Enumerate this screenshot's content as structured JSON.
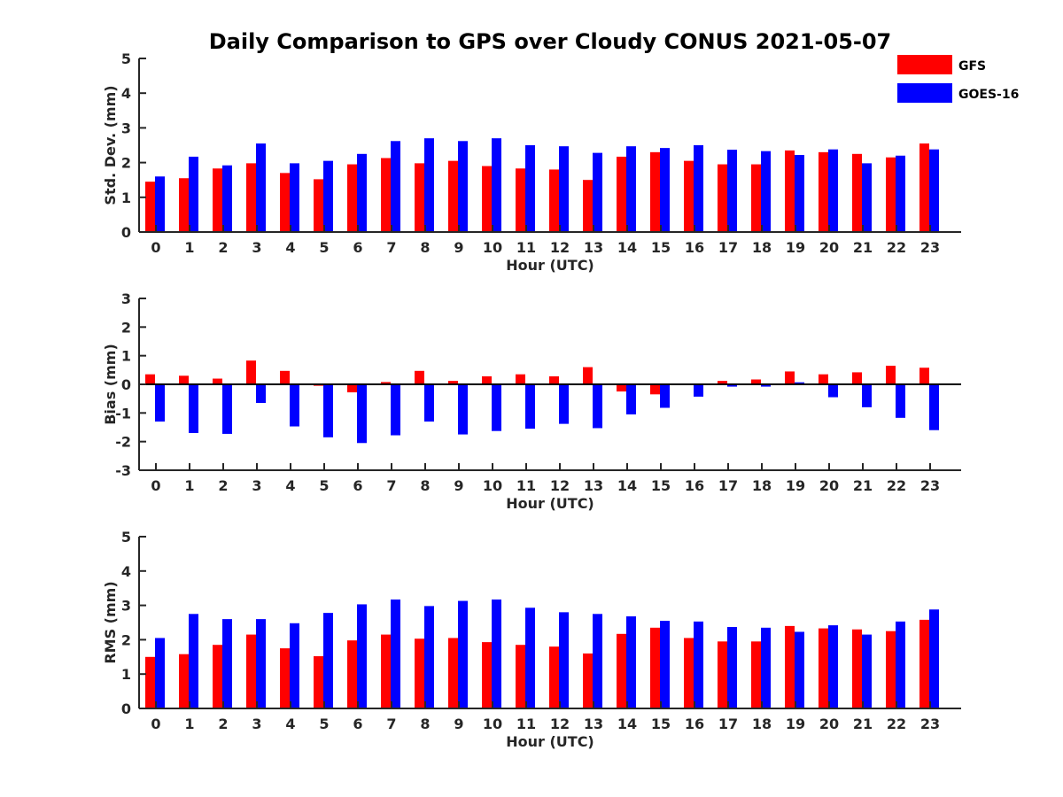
{
  "title": "Daily Comparison to GPS over Cloudy CONUS 2021-05-07",
  "colors": {
    "GFS": "#ff0000",
    "GOES-16": "#0000ff"
  },
  "legend": [
    {
      "name": "GFS",
      "color": "#ff0000"
    },
    {
      "name": "GOES-16",
      "color": "#0000ff"
    }
  ],
  "chart_data": [
    {
      "type": "bar",
      "categories": [
        "0",
        "1",
        "2",
        "3",
        "4",
        "5",
        "6",
        "7",
        "8",
        "9",
        "10",
        "11",
        "12",
        "13",
        "14",
        "15",
        "16",
        "17",
        "18",
        "19",
        "20",
        "21",
        "22",
        "23"
      ],
      "xlabel": "Hour (UTC)",
      "ylabel": "Std. Dev. (mm)",
      "ylim": [
        0,
        5
      ],
      "yticks": [
        "0",
        "1",
        "2",
        "3",
        "4",
        "5"
      ],
      "legend_position": "top-right",
      "series": [
        {
          "name": "GFS",
          "values": [
            1.45,
            1.55,
            1.83,
            1.98,
            1.7,
            1.52,
            1.95,
            2.13,
            1.98,
            2.05,
            1.9,
            1.83,
            1.8,
            1.5,
            2.17,
            2.3,
            2.05,
            1.95,
            1.95,
            2.35,
            2.3,
            2.25,
            2.15,
            2.55
          ]
        },
        {
          "name": "GOES-16",
          "values": [
            1.6,
            2.17,
            1.92,
            2.55,
            1.98,
            2.05,
            2.25,
            2.62,
            2.7,
            2.62,
            2.7,
            2.5,
            2.47,
            2.28,
            2.47,
            2.42,
            2.5,
            2.37,
            2.33,
            2.22,
            2.38,
            1.98,
            2.2,
            2.38
          ]
        }
      ]
    },
    {
      "type": "bar",
      "categories": [
        "0",
        "1",
        "2",
        "3",
        "4",
        "5",
        "6",
        "7",
        "8",
        "9",
        "10",
        "11",
        "12",
        "13",
        "14",
        "15",
        "16",
        "17",
        "18",
        "19",
        "20",
        "21",
        "22",
        "23"
      ],
      "xlabel": "Hour (UTC)",
      "ylabel": "Bias (mm)",
      "ylim": [
        -3,
        3
      ],
      "yticks": [
        "-3",
        "-2",
        "-1",
        "0",
        "1",
        "2",
        "3"
      ],
      "series": [
        {
          "name": "GFS",
          "values": [
            0.35,
            0.3,
            0.2,
            0.83,
            0.47,
            -0.05,
            -0.28,
            0.08,
            0.47,
            0.12,
            0.28,
            0.35,
            0.28,
            0.6,
            -0.25,
            -0.35,
            0.03,
            0.12,
            0.17,
            0.45,
            0.35,
            0.42,
            0.65,
            0.58
          ]
        },
        {
          "name": "GOES-16",
          "values": [
            -1.3,
            -1.7,
            -1.73,
            -0.65,
            -1.47,
            -1.85,
            -2.05,
            -1.78,
            -1.3,
            -1.75,
            -1.63,
            -1.55,
            -1.38,
            -1.53,
            -1.05,
            -0.82,
            -0.43,
            -0.08,
            -0.08,
            0.07,
            -0.45,
            -0.8,
            -1.17,
            -1.6
          ]
        }
      ]
    },
    {
      "type": "bar",
      "categories": [
        "0",
        "1",
        "2",
        "3",
        "4",
        "5",
        "6",
        "7",
        "8",
        "9",
        "10",
        "11",
        "12",
        "13",
        "14",
        "15",
        "16",
        "17",
        "18",
        "19",
        "20",
        "21",
        "22",
        "23"
      ],
      "xlabel": "Hour (UTC)",
      "ylabel": "RMS (mm)",
      "ylim": [
        0,
        5
      ],
      "yticks": [
        "0",
        "1",
        "2",
        "3",
        "4",
        "5"
      ],
      "series": [
        {
          "name": "GFS",
          "values": [
            1.5,
            1.58,
            1.85,
            2.15,
            1.75,
            1.52,
            1.98,
            2.15,
            2.03,
            2.05,
            1.93,
            1.85,
            1.8,
            1.6,
            2.17,
            2.35,
            2.05,
            1.95,
            1.95,
            2.4,
            2.33,
            2.3,
            2.25,
            2.58
          ]
        },
        {
          "name": "GOES-16",
          "values": [
            2.05,
            2.75,
            2.6,
            2.6,
            2.48,
            2.78,
            3.03,
            3.17,
            2.98,
            3.13,
            3.17,
            2.93,
            2.8,
            2.75,
            2.68,
            2.55,
            2.53,
            2.37,
            2.35,
            2.23,
            2.42,
            2.15,
            2.53,
            2.88
          ]
        }
      ]
    }
  ]
}
